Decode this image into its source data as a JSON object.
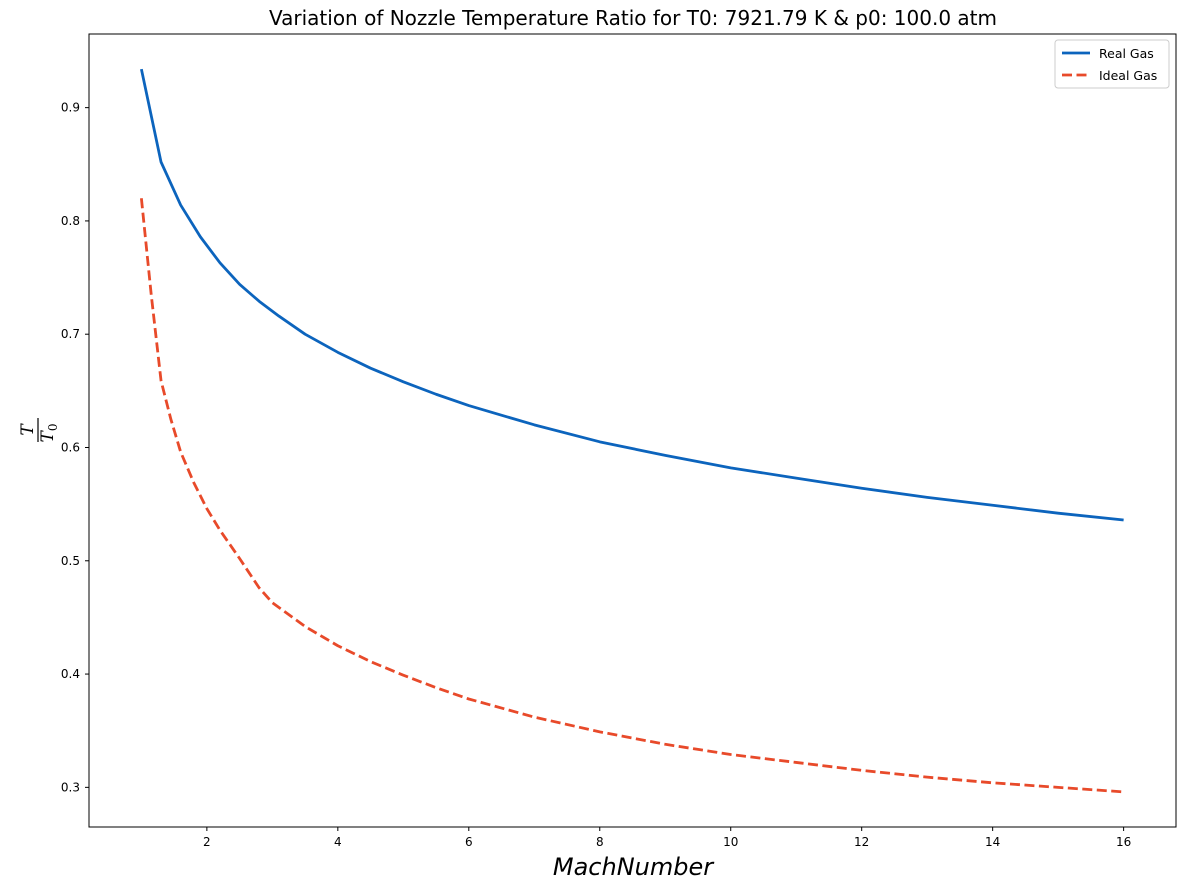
{
  "chart_data": {
    "type": "line",
    "title": "Variation of Nozzle Temperature Ratio for T0: 7921.79 K & p0: 100.0 atm",
    "xlabel": "MachNumber",
    "ylabel": "T",
    "ylabel_denominator": "T",
    "ylabel_subscript": "0",
    "xlim": [
      0.2,
      16.8
    ],
    "ylim": [
      0.265,
      0.965
    ],
    "xticks": [
      2,
      4,
      6,
      8,
      10,
      12,
      14,
      16
    ],
    "xtick_labels": [
      "2",
      "4",
      "6",
      "8",
      "10",
      "12",
      "14",
      "16"
    ],
    "yticks": [
      0.3,
      0.4,
      0.5,
      0.6,
      0.7,
      0.8,
      0.9
    ],
    "ytick_labels": [
      "0.3",
      "0.4",
      "0.5",
      "0.6",
      "0.7",
      "0.8",
      "0.9"
    ],
    "grid": false,
    "legend_position": "top-right",
    "series": [
      {
        "name": "Real Gas",
        "color": "#0c64bd",
        "dash": "solid",
        "x": [
          1.0,
          1.3,
          1.6,
          1.9,
          2.2,
          2.5,
          2.8,
          3.1,
          3.5,
          4.0,
          4.5,
          5.0,
          5.5,
          6.0,
          7.0,
          8.0,
          9.0,
          10.0,
          11.0,
          12.0,
          13.0,
          14.0,
          15.0,
          16.0
        ],
        "y": [
          0.934,
          0.852,
          0.814,
          0.786,
          0.763,
          0.744,
          0.729,
          0.716,
          0.7,
          0.684,
          0.67,
          0.658,
          0.647,
          0.637,
          0.62,
          0.605,
          0.593,
          0.582,
          0.573,
          0.564,
          0.556,
          0.549,
          0.542,
          0.536
        ]
      },
      {
        "name": "Ideal Gas",
        "color": "#e84a2a",
        "dash": "dashed",
        "x": [
          1.0,
          1.15,
          1.3,
          1.45,
          1.6,
          1.8,
          2.0,
          2.2,
          2.5,
          2.8,
          3.0,
          3.5,
          4.0,
          4.5,
          5.0,
          5.5,
          6.0,
          7.0,
          8.0,
          9.0,
          10.0,
          11.0,
          12.0,
          13.0,
          14.0,
          15.0,
          16.0
        ],
        "y": [
          0.82,
          0.735,
          0.659,
          0.625,
          0.596,
          0.569,
          0.546,
          0.527,
          0.502,
          0.476,
          0.463,
          0.442,
          0.425,
          0.411,
          0.399,
          0.388,
          0.378,
          0.362,
          0.349,
          0.338,
          0.329,
          0.322,
          0.315,
          0.309,
          0.304,
          0.3,
          0.296
        ]
      }
    ]
  }
}
